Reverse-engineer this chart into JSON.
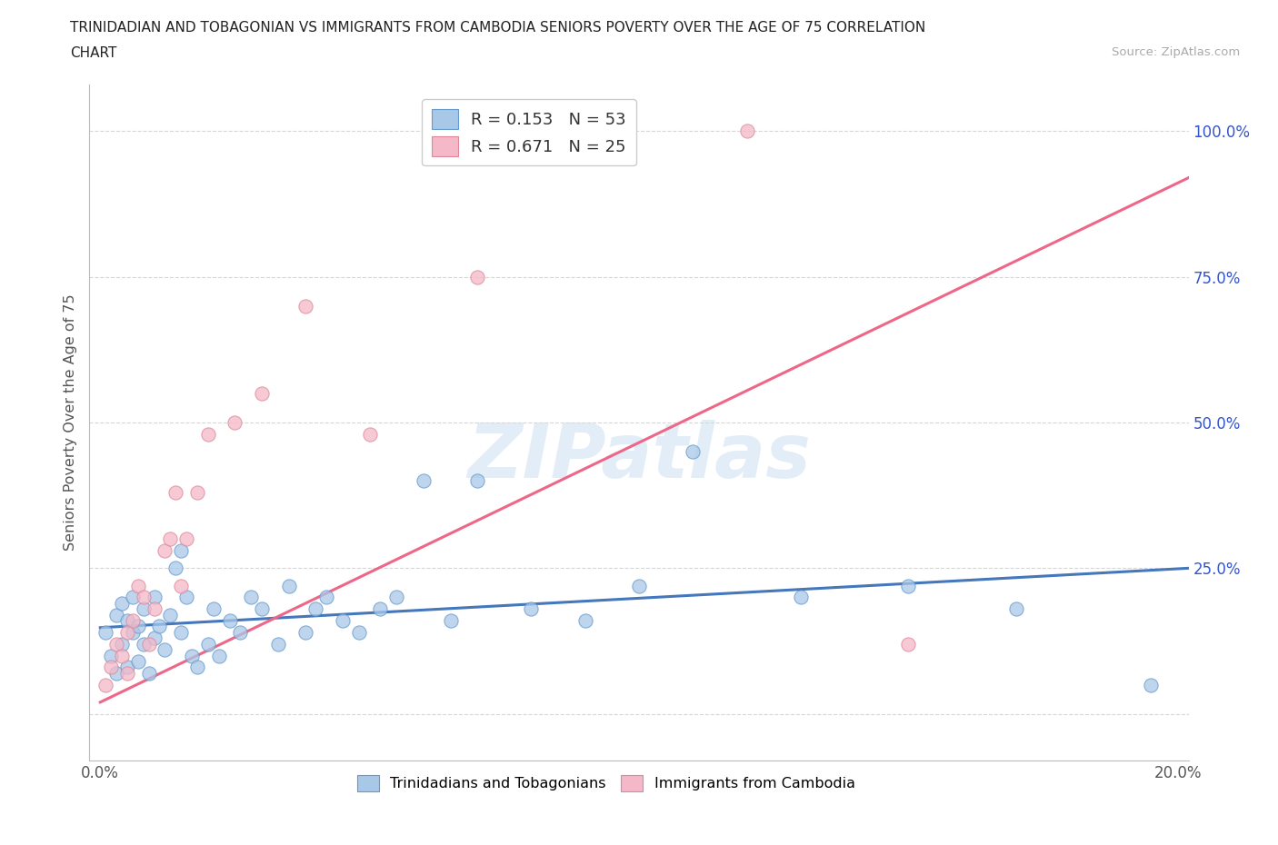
{
  "title_line1": "TRINIDADIAN AND TOBAGONIAN VS IMMIGRANTS FROM CAMBODIA SENIORS POVERTY OVER THE AGE OF 75 CORRELATION",
  "title_line2": "CHART",
  "source_text": "Source: ZipAtlas.com",
  "ylabel": "Seniors Poverty Over the Age of 75",
  "xlim": [
    -0.002,
    0.202
  ],
  "ylim": [
    -0.08,
    1.08
  ],
  "xticks": [
    0.0,
    0.05,
    0.1,
    0.15,
    0.2
  ],
  "xtick_labels": [
    "0.0%",
    "",
    "",
    "",
    "20.0%"
  ],
  "yticks": [
    0.0,
    0.25,
    0.5,
    0.75,
    1.0
  ],
  "ytick_labels": [
    "",
    "25.0%",
    "50.0%",
    "75.0%",
    "100.0%"
  ],
  "legend_r1": "R = 0.153",
  "legend_n1": "N = 53",
  "legend_r2": "R = 0.671",
  "legend_n2": "N = 25",
  "color_blue": "#a8c8e8",
  "color_blue_edge": "#6699cc",
  "color_pink": "#f4b8c8",
  "color_pink_edge": "#dd8899",
  "color_trend_blue": "#4477bb",
  "color_trend_pink": "#ee6688",
  "watermark": "ZIPatlas",
  "blue_scatter_x": [
    0.001,
    0.002,
    0.003,
    0.003,
    0.004,
    0.004,
    0.005,
    0.005,
    0.006,
    0.006,
    0.007,
    0.007,
    0.008,
    0.008,
    0.009,
    0.01,
    0.01,
    0.011,
    0.012,
    0.013,
    0.014,
    0.015,
    0.015,
    0.016,
    0.017,
    0.018,
    0.02,
    0.021,
    0.022,
    0.024,
    0.026,
    0.028,
    0.03,
    0.033,
    0.035,
    0.038,
    0.04,
    0.042,
    0.045,
    0.048,
    0.052,
    0.055,
    0.06,
    0.065,
    0.07,
    0.08,
    0.09,
    0.1,
    0.11,
    0.13,
    0.15,
    0.17,
    0.195
  ],
  "blue_scatter_y": [
    0.14,
    0.1,
    0.07,
    0.17,
    0.12,
    0.19,
    0.08,
    0.16,
    0.14,
    0.2,
    0.09,
    0.15,
    0.12,
    0.18,
    0.07,
    0.13,
    0.2,
    0.15,
    0.11,
    0.17,
    0.25,
    0.14,
    0.28,
    0.2,
    0.1,
    0.08,
    0.12,
    0.18,
    0.1,
    0.16,
    0.14,
    0.2,
    0.18,
    0.12,
    0.22,
    0.14,
    0.18,
    0.2,
    0.16,
    0.14,
    0.18,
    0.2,
    0.4,
    0.16,
    0.4,
    0.18,
    0.16,
    0.22,
    0.45,
    0.2,
    0.22,
    0.18,
    0.05
  ],
  "pink_scatter_x": [
    0.001,
    0.002,
    0.003,
    0.004,
    0.005,
    0.005,
    0.006,
    0.007,
    0.008,
    0.009,
    0.01,
    0.012,
    0.013,
    0.014,
    0.015,
    0.016,
    0.018,
    0.02,
    0.025,
    0.03,
    0.038,
    0.05,
    0.07,
    0.12,
    0.15
  ],
  "pink_scatter_y": [
    0.05,
    0.08,
    0.12,
    0.1,
    0.14,
    0.07,
    0.16,
    0.22,
    0.2,
    0.12,
    0.18,
    0.28,
    0.3,
    0.38,
    0.22,
    0.3,
    0.38,
    0.48,
    0.5,
    0.55,
    0.7,
    0.48,
    0.75,
    1.0,
    0.12
  ],
  "blue_trend_x": [
    0.0,
    0.202
  ],
  "blue_trend_y": [
    0.148,
    0.25
  ],
  "pink_trend_x": [
    0.0,
    0.202
  ],
  "pink_trend_y": [
    0.02,
    0.92
  ],
  "grid_color": "#cccccc",
  "bg_color": "#ffffff",
  "title_color": "#222222",
  "ytick_color": "#3355cc",
  "axis_color": "#777777"
}
